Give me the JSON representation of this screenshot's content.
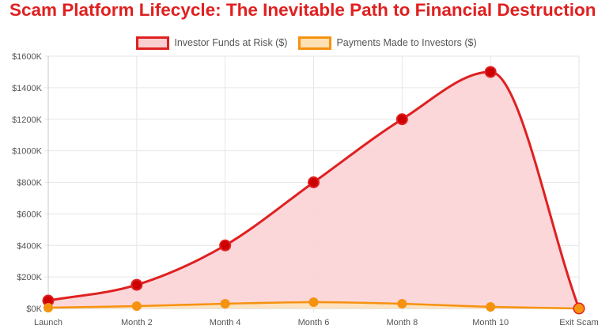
{
  "page": {
    "title": "Scam Platform Lifecycle: The Inevitable Path to Financial Destruction",
    "title_color": "#e02020"
  },
  "legend": {
    "placement": "top-center",
    "items": [
      {
        "label": "Investor Funds at Risk ($)",
        "stroke": "#e02020",
        "fill": "#f9cfd2"
      },
      {
        "label": "Payments Made to Investors ($)",
        "stroke": "#f6920f",
        "fill": "#fde0b4"
      }
    ]
  },
  "chart_data": {
    "type": "area",
    "categories": [
      "Launch",
      "Month 2",
      "Month 4",
      "Month 6",
      "Month 8",
      "Month 10",
      "Exit Scam"
    ],
    "series": [
      {
        "name": "Investor Funds at Risk ($)",
        "values": [
          50000,
          150000,
          400000,
          800000,
          1200000,
          1500000,
          0
        ],
        "stroke": "#e02020",
        "fill": "#fbd3d6",
        "point": "#cc0000"
      },
      {
        "name": "Payments Made to Investors ($)",
        "values": [
          5000,
          15000,
          30000,
          40000,
          30000,
          10000,
          0
        ],
        "stroke": "#f6920f",
        "fill": "#fde3bd",
        "point": "#f6920f"
      }
    ],
    "ylim": [
      0,
      1600000
    ],
    "y_ticks": [
      0,
      200000,
      400000,
      600000,
      800000,
      1000000,
      1200000,
      1400000,
      1600000
    ],
    "y_tick_labels": [
      "$0K",
      "$200K",
      "$400K",
      "$600K",
      "$800K",
      "$1000K",
      "$1200K",
      "$1400K",
      "$1600K"
    ],
    "grid": true,
    "xlabel": "",
    "ylabel": ""
  }
}
